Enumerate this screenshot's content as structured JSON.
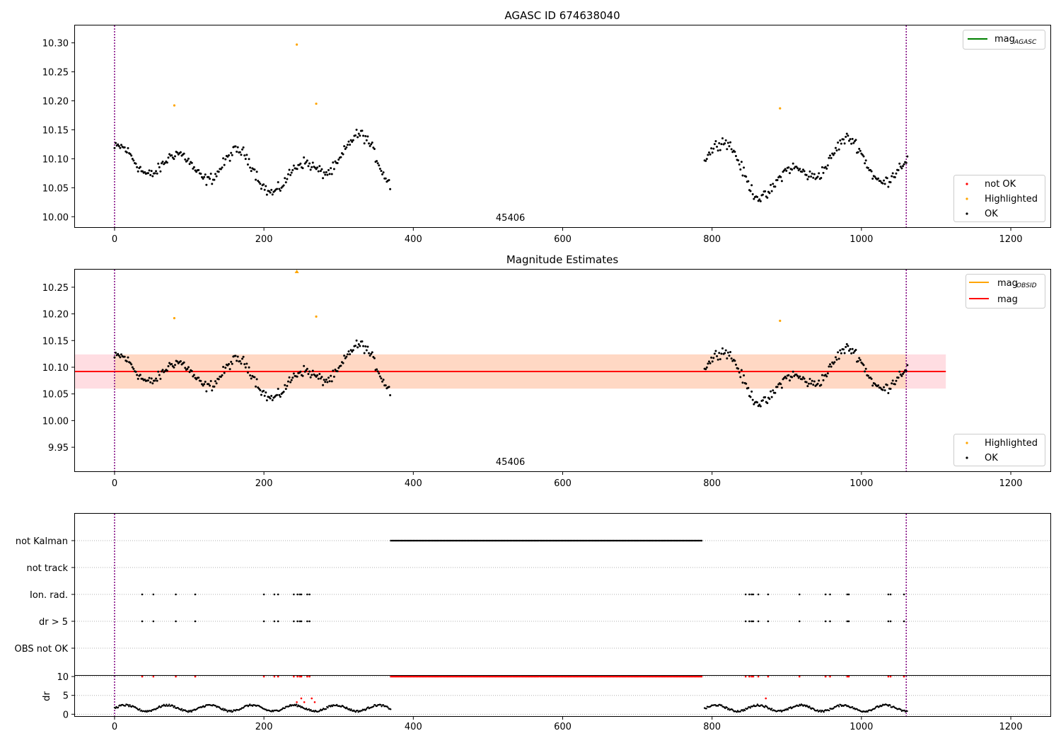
{
  "chart_data": [
    {
      "id": "mag-agasc",
      "type": "scatter",
      "title": "AGASC ID 674638040",
      "xlim": [
        -53,
        1253
      ],
      "ylim": [
        9.982,
        10.33
      ],
      "xticks": [
        0,
        200,
        400,
        600,
        800,
        1000,
        1200
      ],
      "xtick_labels": [
        "0",
        "200",
        "400",
        "600",
        "800",
        "1000",
        "1200"
      ],
      "yticks": [
        10.0,
        10.05,
        10.1,
        10.15,
        10.2,
        10.25,
        10.3
      ],
      "ytick_labels": [
        "10.00",
        "10.05",
        "10.10",
        "10.15",
        "10.20",
        "10.25",
        "10.30"
      ],
      "obsid_label": "45406",
      "obsid_x": 530,
      "obs_boundaries_x": [
        0,
        1060
      ],
      "legend_top": {
        "label": "mag",
        "sub": "AGASC",
        "color": "#008000"
      },
      "legend_bottom": [
        {
          "label": "not OK",
          "color": "#ff0000"
        },
        {
          "label": "Highlighted",
          "color": "#ffa500"
        },
        {
          "label": "OK",
          "color": "#000000"
        }
      ],
      "segments": [
        {
          "x0": 0,
          "x1": 370,
          "phase": 0.4
        },
        {
          "x0": 790,
          "x1": 1062,
          "phase": 1.7
        }
      ],
      "highlighted": [
        [
          80,
          10.192
        ],
        [
          244,
          10.297
        ],
        [
          270,
          10.195
        ],
        [
          891,
          10.187
        ]
      ]
    },
    {
      "id": "mag-estimates",
      "type": "scatter",
      "title": "Magnitude Estimates",
      "xlim": [
        -53,
        1253
      ],
      "ylim": [
        9.905,
        10.283
      ],
      "xticks": [
        0,
        200,
        400,
        600,
        800,
        1000,
        1200
      ],
      "xtick_labels": [
        "0",
        "200",
        "400",
        "600",
        "800",
        "1000",
        "1200"
      ],
      "yticks": [
        9.95,
        10.0,
        10.05,
        10.1,
        10.15,
        10.2,
        10.25
      ],
      "ytick_labels": [
        "9.95",
        "10.00",
        "10.05",
        "10.10",
        "10.15",
        "10.20",
        "10.25"
      ],
      "obsid_label": "45406",
      "obsid_x": 530,
      "obs_boundaries_x": [
        0,
        1060
      ],
      "mag_mean": 10.092,
      "band": [
        10.06,
        10.124
      ],
      "band_x": [
        -53,
        1113
      ],
      "legend_top": [
        {
          "label": "mag",
          "sub": "OBSID",
          "color": "#ffa500"
        },
        {
          "label": "mag",
          "sub": "",
          "color": "#ff0000"
        }
      ],
      "legend_bottom": [
        {
          "label": "Highlighted",
          "color": "#ffa500"
        },
        {
          "label": "OK",
          "color": "#000000"
        }
      ],
      "highlighted": [
        [
          80,
          10.192
        ],
        [
          270,
          10.195
        ],
        [
          891,
          10.187
        ]
      ],
      "offscale_marker": [
        244,
        10.278
      ]
    },
    {
      "id": "flags",
      "type": "scatter",
      "xlim": [
        -53,
        1253
      ],
      "categories": [
        "not Kalman",
        "not track",
        "Ion. rad.",
        "dr > 5",
        "OBS not OK"
      ],
      "not_kalman_range": [
        370,
        786
      ],
      "ion_rad_x": [
        37,
        52,
        82,
        108,
        200,
        214,
        219,
        240,
        245,
        248,
        250,
        258,
        261,
        845,
        850,
        853,
        855,
        862,
        875,
        917,
        952,
        958,
        981,
        983,
        1036,
        1039,
        1057
      ],
      "dr5_x": [
        37,
        52,
        82,
        108,
        200,
        214,
        219,
        240,
        245,
        248,
        250,
        258,
        261,
        845,
        850,
        853,
        855,
        862,
        875,
        917,
        952,
        958,
        981,
        983,
        1036,
        1039,
        1057
      ]
    },
    {
      "id": "dr",
      "type": "scatter",
      "ylabel": "dr",
      "xlim": [
        -53,
        1253
      ],
      "ylim": [
        -0.5,
        10.2
      ],
      "xticks": [
        0,
        200,
        400,
        600,
        800,
        1000,
        1200
      ],
      "xtick_labels": [
        "0",
        "200",
        "400",
        "600",
        "800",
        "1000",
        "1200"
      ],
      "yticks": [
        0,
        5,
        10
      ],
      "ytick_labels": [
        "0",
        "5",
        "10"
      ],
      "ok_segments": [
        [
          0,
          370
        ],
        [
          790,
          1062
        ]
      ],
      "red_range": [
        370,
        786
      ]
    }
  ]
}
